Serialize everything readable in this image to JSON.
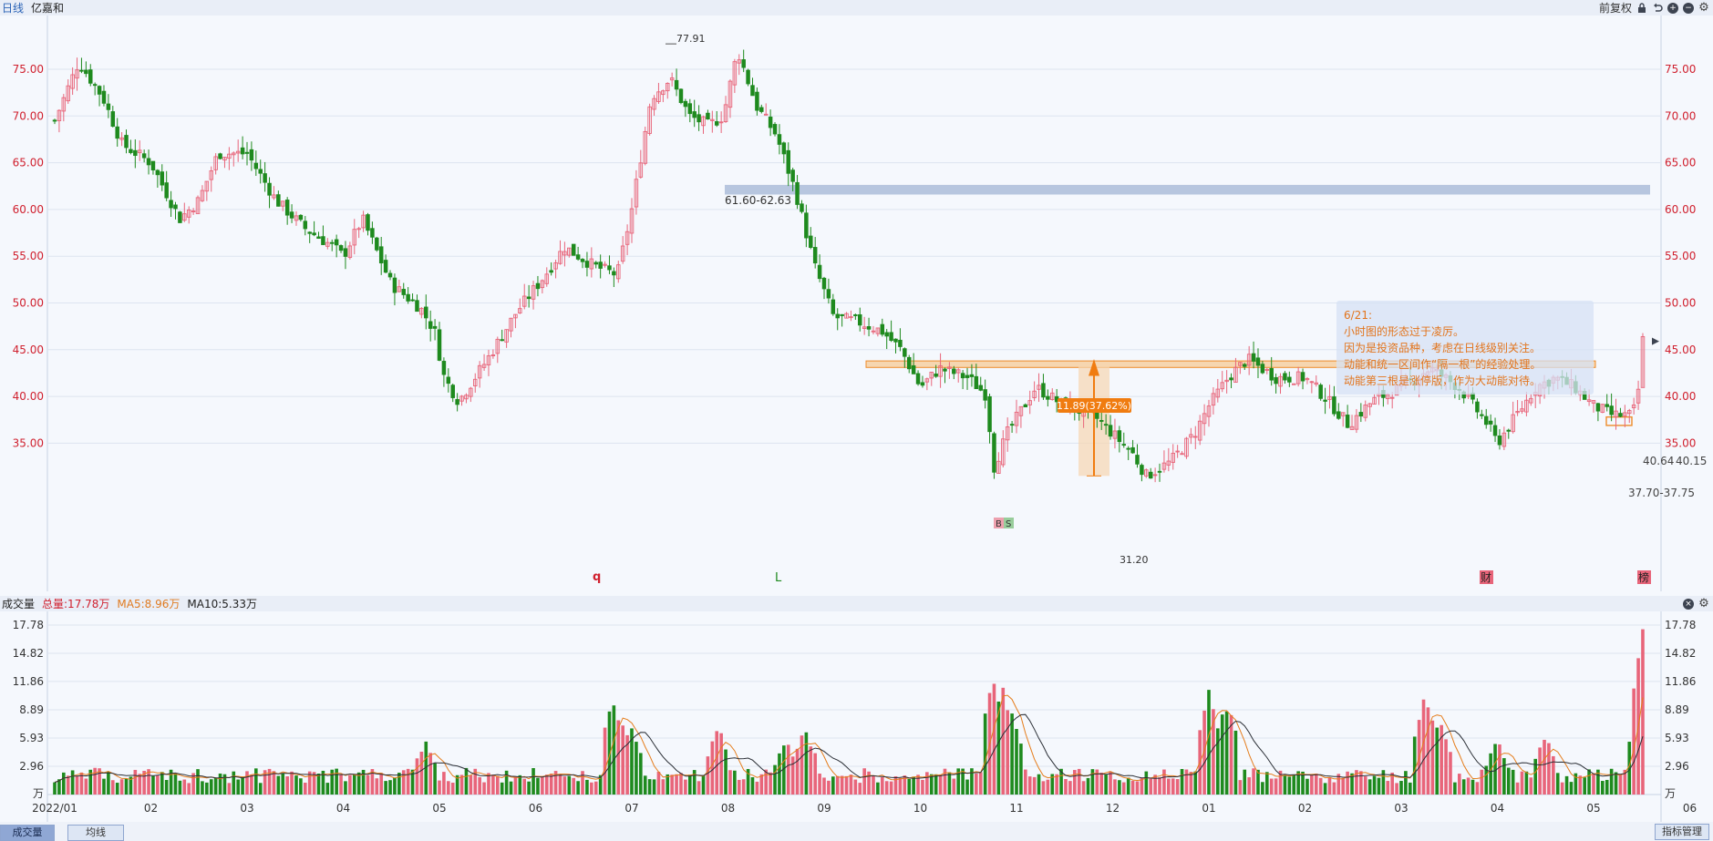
{
  "header": {
    "period": "日线",
    "stock_name": "亿嘉和",
    "adjust": "前复权",
    "icons": [
      "lock-icon",
      "undo-icon",
      "zoom-in-icon",
      "zoom-out-icon",
      "gear-icon"
    ]
  },
  "volume_header": {
    "title": "成交量",
    "total": "总量:17.78万",
    "ma5": "MA5:8.96万",
    "ma10": "MA10:5.33万",
    "icons": [
      "close-icon",
      "gear-icon"
    ]
  },
  "annotations": {
    "high": "77.91",
    "low": "31.20",
    "zone_label": "61.60-62.63",
    "measure_label": "11.89(37.62%)",
    "box_label": "37.70-37.75",
    "last_price": "40.64",
    "last_price_tail": "40.15",
    "bs_b": "B",
    "bs_s": "S",
    "marker_q": "q",
    "marker_l": "L",
    "marker_cai": "财",
    "marker_bang": "榜"
  },
  "note": {
    "title": "6/21:",
    "lines": [
      "小时图的形态过于凌厉。",
      "因为是投资品种，考虑在日线级别关注。",
      "动能和统一区间作“隔一根”的经验处理。",
      "动能第三根是涨停版，作为大动能对待。"
    ]
  },
  "bottom": {
    "tab_volume": "成交量",
    "tab_ma": "均线",
    "manage": "指标管理"
  },
  "chart_data": [
    {
      "type": "candlestick",
      "price_ticks": [
        "75.00",
        "70.00",
        "65.00",
        "60.00",
        "55.00",
        "50.00",
        "45.00",
        "40.00",
        "35.00"
      ],
      "x_ticks": [
        "2022/01",
        "02",
        "03",
        "04",
        "05",
        "06",
        "07",
        "08",
        "09",
        "10",
        "11",
        "12",
        "01",
        "02",
        "03",
        "04",
        "05",
        "06"
      ],
      "path": [
        {
          "m": 0,
          "p": 69.5
        },
        {
          "m": 0.25,
          "p": 75.8
        },
        {
          "m": 0.5,
          "p": 72
        },
        {
          "m": 0.7,
          "p": 67
        },
        {
          "m": 1,
          "p": 65
        },
        {
          "m": 1.3,
          "p": 59
        },
        {
          "m": 1.5,
          "p": 61
        },
        {
          "m": 1.7,
          "p": 66
        },
        {
          "m": 2,
          "p": 66
        },
        {
          "m": 2.3,
          "p": 61
        },
        {
          "m": 2.6,
          "p": 58
        },
        {
          "m": 2.9,
          "p": 56
        },
        {
          "m": 3,
          "p": 55
        },
        {
          "m": 3.2,
          "p": 59
        },
        {
          "m": 3.5,
          "p": 52
        },
        {
          "m": 3.8,
          "p": 49.5
        },
        {
          "m": 3.95,
          "p": 47
        },
        {
          "m": 4.05,
          "p": 42
        },
        {
          "m": 4.2,
          "p": 39.5
        },
        {
          "m": 4.5,
          "p": 44
        },
        {
          "m": 4.8,
          "p": 49
        },
        {
          "m": 5.1,
          "p": 53
        },
        {
          "m": 5.3,
          "p": 56
        },
        {
          "m": 5.6,
          "p": 54
        },
        {
          "m": 5.85,
          "p": 53
        },
        {
          "m": 6,
          "p": 60
        },
        {
          "m": 6.2,
          "p": 72
        },
        {
          "m": 6.4,
          "p": 74
        },
        {
          "m": 6.6,
          "p": 70
        },
        {
          "m": 6.8,
          "p": 69
        },
        {
          "m": 6.95,
          "p": 70
        },
        {
          "m": 7.1,
          "p": 77
        },
        {
          "m": 7.3,
          "p": 71
        },
        {
          "m": 7.5,
          "p": 68
        },
        {
          "m": 7.7,
          "p": 62
        },
        {
          "m": 7.9,
          "p": 54
        },
        {
          "m": 8.1,
          "p": 48.5
        },
        {
          "m": 8.35,
          "p": 48
        },
        {
          "m": 8.6,
          "p": 47
        },
        {
          "m": 8.8,
          "p": 45
        },
        {
          "m": 9,
          "p": 41
        },
        {
          "m": 9.2,
          "p": 43
        },
        {
          "m": 9.5,
          "p": 42
        },
        {
          "m": 9.7,
          "p": 40
        },
        {
          "m": 9.75,
          "p": 32
        },
        {
          "m": 9.9,
          "p": 36
        },
        {
          "m": 10.2,
          "p": 41
        },
        {
          "m": 10.5,
          "p": 39
        },
        {
          "m": 10.8,
          "p": 38
        },
        {
          "m": 11,
          "p": 36
        },
        {
          "m": 11.2,
          "p": 34
        },
        {
          "m": 11.35,
          "p": 31.5
        },
        {
          "m": 11.6,
          "p": 33
        },
        {
          "m": 11.85,
          "p": 36
        },
        {
          "m": 12,
          "p": 39
        },
        {
          "m": 12.2,
          "p": 42
        },
        {
          "m": 12.4,
          "p": 44
        },
        {
          "m": 12.7,
          "p": 42
        },
        {
          "m": 13,
          "p": 42
        },
        {
          "m": 13.2,
          "p": 40
        },
        {
          "m": 13.45,
          "p": 37
        },
        {
          "m": 13.7,
          "p": 39.5
        },
        {
          "m": 14,
          "p": 41
        },
        {
          "m": 14.3,
          "p": 43
        },
        {
          "m": 14.6,
          "p": 41
        },
        {
          "m": 14.9,
          "p": 37
        },
        {
          "m": 15,
          "p": 35
        },
        {
          "m": 15.2,
          "p": 38
        },
        {
          "m": 15.4,
          "p": 41
        },
        {
          "m": 15.6,
          "p": 42
        },
        {
          "m": 15.8,
          "p": 41
        },
        {
          "m": 16,
          "p": 39
        },
        {
          "m": 16.2,
          "p": 38
        },
        {
          "m": 16.38,
          "p": 38
        },
        {
          "m": 16.45,
          "p": 39
        },
        {
          "m": 16.52,
          "p": 47
        },
        {
          "m": 16.55,
          "p": 41
        }
      ],
      "resistance_zone": [
        61.6,
        62.63
      ],
      "range_zone": [
        43.1,
        43.8
      ],
      "entry_box": [
        36.9,
        37.8
      ]
    },
    {
      "type": "bar",
      "name": "成交量",
      "unit": "万",
      "y_ticks": [
        "17.78",
        "14.82",
        "11.86",
        "8.89",
        "5.93",
        "2.96"
      ],
      "baseline": 1.2,
      "spikes": [
        {
          "m": 3.85,
          "v": 5.2
        },
        {
          "m": 5.8,
          "v": 9.6
        },
        {
          "m": 5.9,
          "v": 7.2
        },
        {
          "m": 6.0,
          "v": 6.6
        },
        {
          "m": 6.9,
          "v": 6.8
        },
        {
          "m": 7.8,
          "v": 6.6
        },
        {
          "m": 7.6,
          "v": 5.5
        },
        {
          "m": 9.75,
          "v": 12.0
        },
        {
          "m": 9.85,
          "v": 11.2
        },
        {
          "m": 9.95,
          "v": 8.6
        },
        {
          "m": 12.0,
          "v": 10.7
        },
        {
          "m": 12.15,
          "v": 8.6
        },
        {
          "m": 12.2,
          "v": 9.0
        },
        {
          "m": 14.25,
          "v": 10.3
        },
        {
          "m": 14.4,
          "v": 7.5
        },
        {
          "m": 15.0,
          "v": 5.2
        },
        {
          "m": 15.5,
          "v": 5.8
        },
        {
          "m": 16.52,
          "v": 17.78
        },
        {
          "m": 16.48,
          "v": 9.0
        },
        {
          "m": 16.45,
          "v": 4.5
        }
      ],
      "ma5_last": 8.96,
      "ma10_last": 5.33
    }
  ],
  "colors": {
    "up": "#e8657a",
    "down": "#1e8a1e",
    "price_axis": "#d0202e",
    "zone": "#b7c6df",
    "range": "#f6d6b0",
    "range_border": "#ee8c2a",
    "ma5": "#e57d1c",
    "ma10": "#2b2f36"
  }
}
